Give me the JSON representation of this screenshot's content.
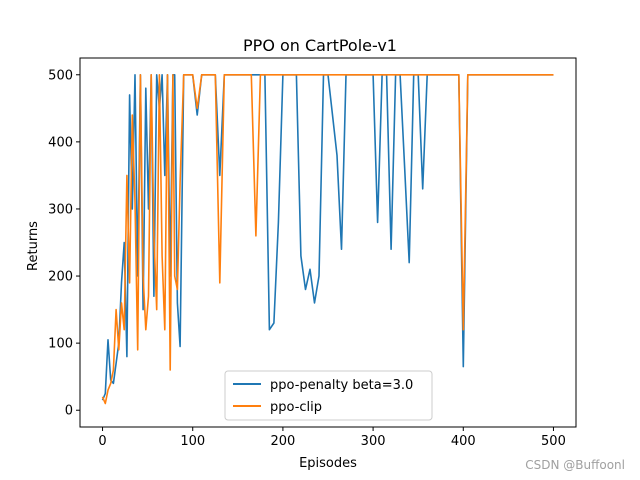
{
  "chart_data": {
    "type": "line",
    "title": "PPO on CartPole-v1",
    "xlabel": "Episodes",
    "ylabel": "Returns",
    "xlim": [
      -25,
      525
    ],
    "ylim": [
      -25,
      525
    ],
    "xticks": [
      0,
      100,
      200,
      300,
      400,
      500
    ],
    "yticks": [
      0,
      100,
      200,
      300,
      400,
      500
    ],
    "legend_position": "lower-center",
    "series": [
      {
        "name": "ppo-penalty beta=3.0",
        "color": "#1f77b4",
        "x": [
          0,
          3,
          6,
          9,
          12,
          15,
          18,
          21,
          24,
          27,
          30,
          33,
          36,
          39,
          42,
          45,
          48,
          51,
          54,
          57,
          60,
          63,
          66,
          69,
          72,
          75,
          78,
          80,
          83,
          86,
          90,
          95,
          100,
          105,
          110,
          115,
          120,
          125,
          130,
          135,
          140,
          145,
          150,
          155,
          160,
          165,
          170,
          175,
          180,
          185,
          190,
          195,
          200,
          205,
          210,
          215,
          220,
          225,
          230,
          235,
          240,
          245,
          250,
          255,
          260,
          265,
          270,
          275,
          280,
          285,
          290,
          295,
          300,
          305,
          310,
          315,
          320,
          325,
          330,
          335,
          340,
          345,
          350,
          355,
          360,
          365,
          370,
          375,
          380,
          385,
          390,
          395,
          400,
          405,
          410,
          415,
          420,
          425,
          430,
          435,
          440,
          445,
          450,
          455,
          460,
          465,
          470,
          475,
          480,
          485,
          490,
          495,
          500
        ],
        "values": [
          15,
          25,
          105,
          45,
          40,
          70,
          100,
          190,
          250,
          80,
          470,
          300,
          500,
          200,
          500,
          150,
          480,
          300,
          500,
          170,
          500,
          450,
          500,
          350,
          500,
          200,
          500,
          500,
          160,
          95,
          500,
          500,
          500,
          440,
          500,
          500,
          500,
          500,
          350,
          500,
          500,
          500,
          500,
          500,
          500,
          500,
          500,
          500,
          500,
          120,
          130,
          280,
          500,
          500,
          500,
          500,
          230,
          180,
          210,
          160,
          200,
          500,
          500,
          440,
          380,
          240,
          500,
          500,
          500,
          500,
          500,
          500,
          500,
          280,
          500,
          500,
          240,
          500,
          500,
          360,
          220,
          500,
          500,
          330,
          500,
          500,
          500,
          500,
          500,
          500,
          500,
          500,
          65,
          500,
          500,
          500,
          500,
          500,
          500,
          500,
          500,
          500,
          500,
          500,
          500,
          500,
          500,
          500,
          500,
          500,
          500,
          500,
          500
        ]
      },
      {
        "name": "ppo-clip",
        "color": "#ff7f0e",
        "x": [
          0,
          3,
          6,
          9,
          12,
          15,
          18,
          21,
          24,
          27,
          30,
          33,
          36,
          39,
          42,
          45,
          48,
          51,
          54,
          57,
          60,
          63,
          66,
          69,
          72,
          75,
          78,
          80,
          83,
          86,
          90,
          95,
          100,
          105,
          110,
          115,
          120,
          125,
          130,
          135,
          140,
          145,
          150,
          155,
          160,
          165,
          170,
          175,
          180,
          185,
          190,
          195,
          200,
          205,
          210,
          215,
          220,
          225,
          230,
          235,
          240,
          245,
          250,
          255,
          260,
          265,
          270,
          275,
          280,
          285,
          290,
          295,
          300,
          305,
          310,
          315,
          320,
          325,
          330,
          335,
          340,
          345,
          350,
          355,
          360,
          365,
          370,
          375,
          380,
          385,
          390,
          395,
          400,
          405,
          410,
          415,
          420,
          425,
          430,
          435,
          440,
          445,
          450,
          455,
          460,
          465,
          470,
          475,
          480,
          485,
          490,
          495,
          500
        ],
        "values": [
          20,
          10,
          30,
          40,
          60,
          150,
          90,
          160,
          120,
          350,
          190,
          440,
          310,
          90,
          500,
          200,
          120,
          170,
          500,
          260,
          150,
          500,
          230,
          120,
          500,
          60,
          500,
          200,
          180,
          340,
          500,
          500,
          500,
          450,
          500,
          500,
          500,
          500,
          190,
          500,
          500,
          500,
          500,
          500,
          500,
          500,
          260,
          500,
          500,
          500,
          500,
          500,
          500,
          500,
          500,
          500,
          500,
          500,
          500,
          500,
          500,
          500,
          500,
          500,
          500,
          500,
          500,
          500,
          500,
          500,
          500,
          500,
          500,
          500,
          500,
          500,
          500,
          500,
          500,
          500,
          500,
          500,
          500,
          500,
          500,
          500,
          500,
          500,
          500,
          500,
          500,
          500,
          120,
          500,
          500,
          500,
          500,
          500,
          500,
          500,
          500,
          500,
          500,
          500,
          500,
          500,
          500,
          500,
          500,
          500,
          500,
          500,
          500
        ]
      }
    ]
  },
  "watermark": "CSDN @Buffoonl"
}
